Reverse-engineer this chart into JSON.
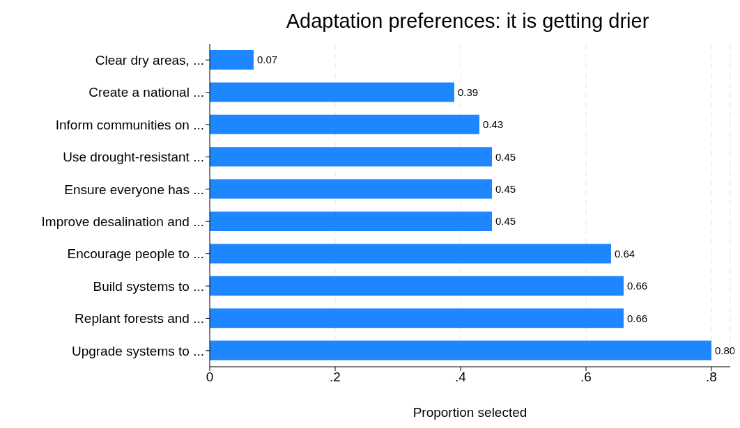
{
  "chart_data": {
    "type": "bar",
    "orientation": "horizontal",
    "title": "Adaptation preferences: it is getting drier",
    "xlabel": "Proportion selected",
    "categories": [
      "Clear dry areas, ...",
      "Create a national ...",
      "Inform communities on ...",
      "Use drought-resistant ...",
      "Ensure everyone has ...",
      "Improve desalination and ...",
      "Encourage people to ...",
      "Build systems to ...",
      "Replant forests and ...",
      "Upgrade systems to ..."
    ],
    "values": [
      0.07,
      0.39,
      0.43,
      0.45,
      0.45,
      0.45,
      0.64,
      0.66,
      0.66,
      0.8
    ],
    "value_labels": [
      "0.07",
      "0.39",
      "0.43",
      "0.45",
      "0.45",
      "0.45",
      "0.64",
      "0.66",
      "0.66",
      "0.80"
    ],
    "color": "#1e87ff",
    "xlim": [
      0,
      0.83
    ],
    "xticks": [
      {
        "value": 0,
        "label": "0"
      },
      {
        "value": 0.2,
        "label": ".2"
      },
      {
        "value": 0.4,
        "label": ".4"
      },
      {
        "value": 0.6,
        "label": ".6"
      },
      {
        "value": 0.8,
        "label": ".8"
      }
    ],
    "grid": "x"
  }
}
